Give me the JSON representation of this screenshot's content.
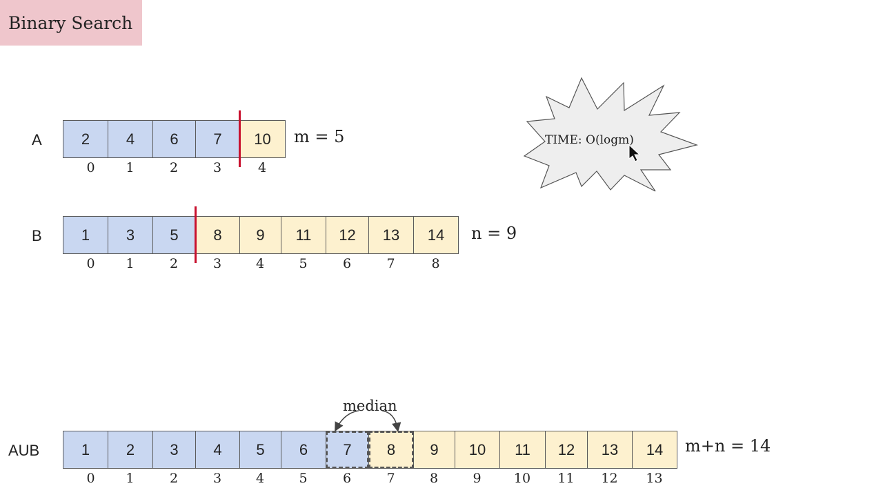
{
  "title": "Binary Search",
  "colors": {
    "title_bg": "#efc6cc",
    "left_partition": "#c9d7f1",
    "right_partition": "#fdf1cf",
    "divider": "#c8102e",
    "burst_fill": "#eeeeee"
  },
  "array_a": {
    "label": "A",
    "values": [
      "2",
      "4",
      "6",
      "7",
      "10"
    ],
    "indices": [
      "0",
      "1",
      "2",
      "3",
      "4"
    ],
    "partition_after": 4,
    "size_note": "m = 5"
  },
  "array_b": {
    "label": "B",
    "values": [
      "1",
      "3",
      "5",
      "8",
      "9",
      "11",
      "12",
      "13",
      "14"
    ],
    "indices": [
      "0",
      "1",
      "2",
      "3",
      "4",
      "5",
      "6",
      "7",
      "8"
    ],
    "partition_after": 3,
    "size_note": "n = 9"
  },
  "array_union": {
    "label": "AUB",
    "values": [
      "1",
      "2",
      "3",
      "4",
      "5",
      "6",
      "7",
      "8",
      "9",
      "10",
      "11",
      "12",
      "13",
      "14"
    ],
    "indices": [
      "0",
      "1",
      "2",
      "3",
      "4",
      "5",
      "6",
      "7",
      "8",
      "9",
      "10",
      "11",
      "12",
      "13"
    ],
    "partition_after": 7,
    "size_note": "m+n = 14",
    "median_label": "median",
    "median_indices": [
      6,
      7
    ]
  },
  "complexity_note": "TIME:  O(logm)",
  "icons": {
    "cursor": "mouse-pointer-icon",
    "burst": "starburst-shape"
  }
}
